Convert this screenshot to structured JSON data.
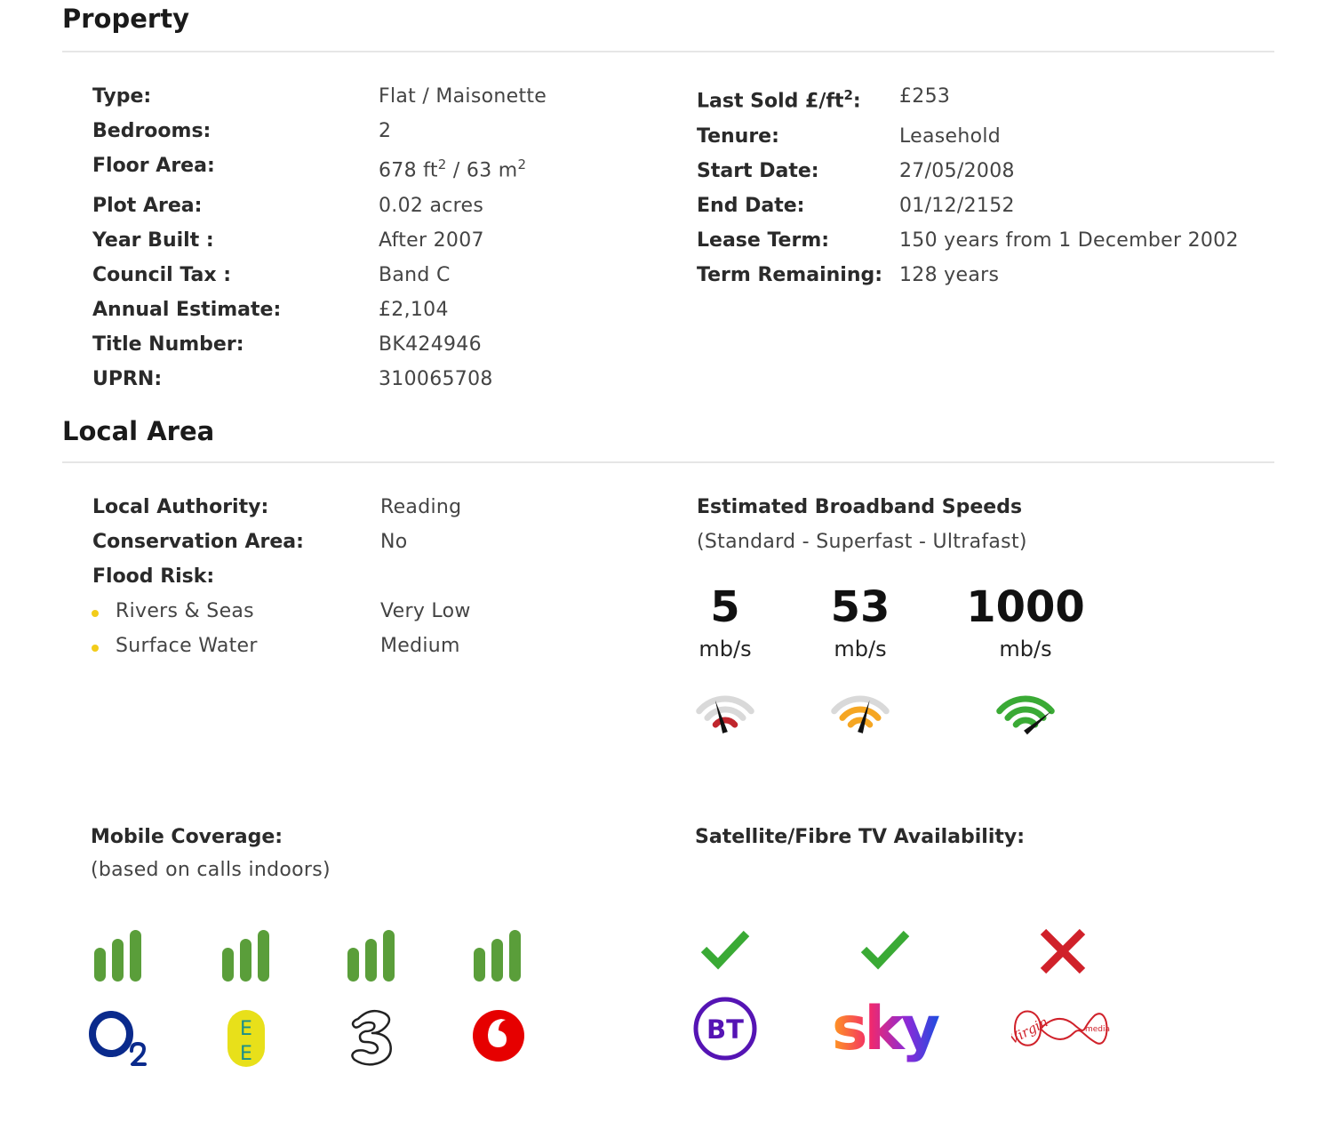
{
  "property": {
    "title": "Property",
    "left": [
      {
        "label": "Type:",
        "value": "Flat / Maisonette"
      },
      {
        "label": "Bedrooms:",
        "value": "2"
      },
      {
        "label": "Floor Area:",
        "value": ""
      },
      {
        "label": "Plot Area:",
        "value": "0.02 acres"
      },
      {
        "label": "Year Built :",
        "value": "After 2007"
      },
      {
        "label": "Council Tax :",
        "value": "Band C"
      },
      {
        "label": "Annual Estimate:",
        "value": "£2,104"
      },
      {
        "label": "Title Number:",
        "value": "BK424946"
      },
      {
        "label": "UPRN:",
        "value": "310065708"
      }
    ],
    "floor_area": {
      "ft": "678 ft",
      "sep": " / 63 m",
      "sup": "2"
    },
    "last_sold": {
      "label_main": "Last Sold £/ft",
      "label_sup": "2",
      "label_end": ":",
      "value": "£253"
    },
    "right": [
      {
        "label": "Tenure:",
        "value": "Leasehold"
      },
      {
        "label": "Start Date:",
        "value": "27/05/2008"
      },
      {
        "label": "End Date:",
        "value": "01/12/2152"
      },
      {
        "label": "Lease Term:",
        "value": "150 years from 1 December 2002"
      },
      {
        "label": "Term Remaining:",
        "value": "128 years"
      }
    ]
  },
  "local_area": {
    "title": "Local Area",
    "local_authority": {
      "label": "Local Authority:",
      "value": "Reading"
    },
    "conservation_area": {
      "label": "Conservation Area:",
      "value": "No"
    },
    "flood_risk": {
      "label": "Flood Risk:"
    },
    "flood_items": [
      {
        "label": "Rivers & Seas",
        "value": "Very Low"
      },
      {
        "label": "Surface Water",
        "value": "Medium"
      }
    ],
    "broadband": {
      "title": "Estimated Broadband Speeds",
      "subtitle": "(Standard - Superfast - Ultrafast)",
      "speeds": [
        {
          "value": "5",
          "unit": "mb/s",
          "color": "#c0262d",
          "level": 0.33
        },
        {
          "value": "53",
          "unit": "mb/s",
          "color": "#f5a623",
          "level": 0.66
        },
        {
          "value": "1000",
          "unit": "mb/s",
          "color": "#3aaa35",
          "level": 1.0
        }
      ]
    },
    "mobile": {
      "title": "Mobile Coverage:",
      "subtitle": "(based on calls indoors)",
      "bar_color": "#5a9e3a",
      "operators": [
        {
          "icon": "o2-logo-icon",
          "bars": 3
        },
        {
          "icon": "ee-logo-icon",
          "bars": 3
        },
        {
          "icon": "three-logo-icon",
          "bars": 3
        },
        {
          "icon": "vodafone-logo-icon",
          "bars": 3
        }
      ]
    },
    "tv": {
      "title": "Satellite/Fibre TV Availability:",
      "check_color": "#3aaa35",
      "cross_color": "#d0212a",
      "providers": [
        {
          "icon": "bt-logo-icon",
          "available": true
        },
        {
          "icon": "sky-logo-icon",
          "available": true
        },
        {
          "icon": "virgin-media-logo-icon",
          "available": false
        }
      ]
    }
  }
}
